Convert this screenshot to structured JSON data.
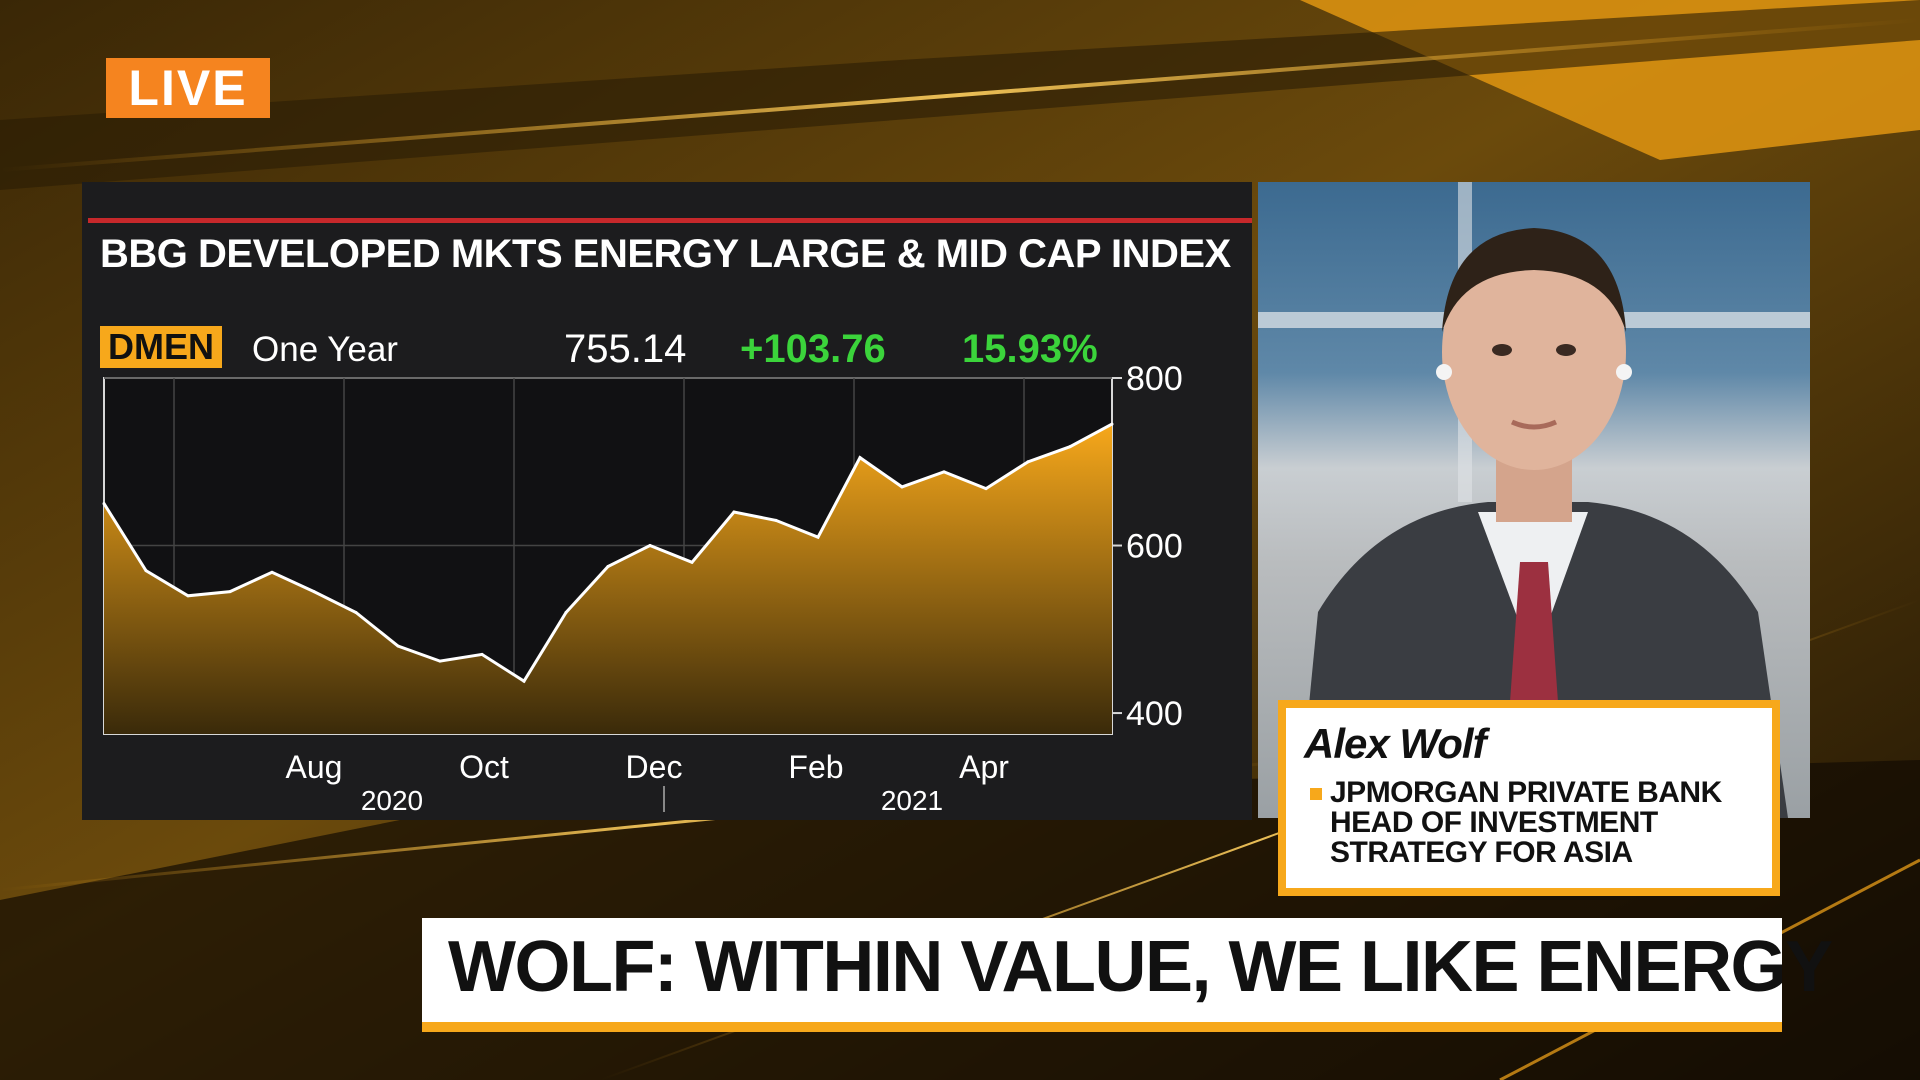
{
  "live_label": "LIVE",
  "chart_panel": {
    "title": "BBG DEVELOPED MKTS ENERGY LARGE & MID CAP INDEX",
    "ticker": "DMEN",
    "period": "One Year",
    "price": "755.14",
    "change": "+103.76",
    "change_pct": "15.93%",
    "accent_color": "#f7a81b",
    "up_color": "#3bd43b"
  },
  "chart_data": {
    "type": "area",
    "title": "BBG DEVELOPED MKTS ENERGY LARGE & MID CAP INDEX",
    "xlabel": "",
    "ylabel": "",
    "ylim": [
      375,
      800
    ],
    "yticks": [
      400,
      600,
      800
    ],
    "xtick_labels": [
      "Aug",
      "Oct",
      "Dec",
      "Feb",
      "Apr"
    ],
    "year_labels": [
      "2020",
      "2021"
    ],
    "x": [
      "Jun 2020",
      "Jun 2020",
      "Jul 2020",
      "Jul 2020",
      "Aug 2020",
      "Aug 2020",
      "Sep 2020",
      "Sep 2020",
      "Oct 2020",
      "Oct 2020",
      "Nov 2020",
      "Nov 2020",
      "Dec 2020",
      "Dec 2020",
      "Jan 2021",
      "Jan 2021",
      "Feb 2021",
      "Feb 2021",
      "Mar 2021",
      "Mar 2021",
      "Apr 2021",
      "Apr 2021",
      "May 2021",
      "May 2021",
      "Jun 2021"
    ],
    "values": [
      650,
      570,
      540,
      545,
      568,
      545,
      520,
      480,
      462,
      470,
      438,
      520,
      575,
      600,
      580,
      640,
      630,
      610,
      705,
      670,
      688,
      668,
      700,
      718,
      745
    ],
    "grid": true,
    "fill_color": "#f7a81b"
  },
  "guest": {
    "name": "Alex Wolf",
    "title_lines": [
      "JPMORGAN PRIVATE BANK",
      "HEAD OF INVESTMENT",
      "STRATEGY FOR ASIA"
    ]
  },
  "headline": "WOLF: WITHIN VALUE, WE LIKE ENERGY"
}
